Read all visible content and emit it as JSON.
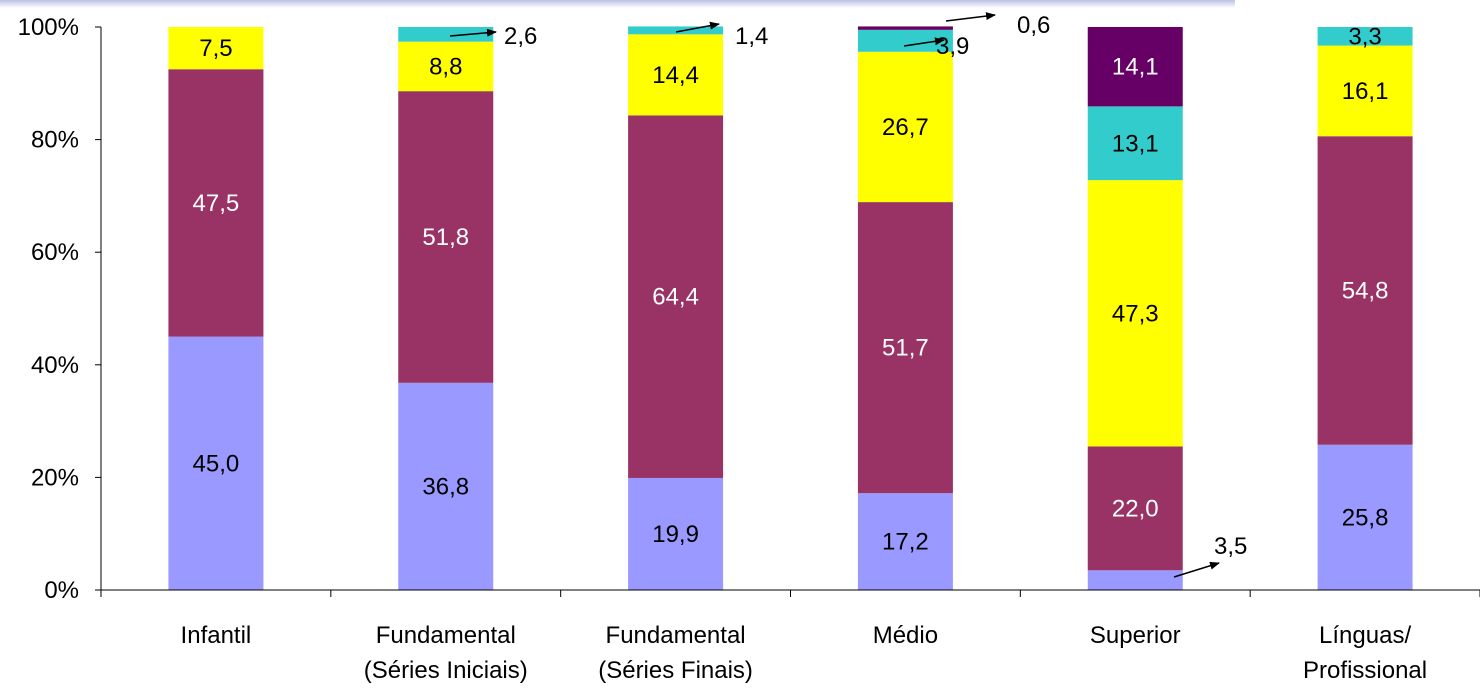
{
  "chart_data": {
    "type": "bar",
    "stacked": true,
    "percent_stacked": true,
    "categories": [
      [
        "Infantil"
      ],
      [
        "Fundamental",
        "(Séries Iniciais)"
      ],
      [
        "Fundamental",
        "(Séries Finais)"
      ],
      [
        "Médio"
      ],
      [
        "Superior"
      ],
      [
        "Línguas/",
        "Profissional"
      ]
    ],
    "series": [
      {
        "color": "#9999ff",
        "values": [
          45.0,
          36.8,
          19.9,
          17.2,
          3.5,
          25.8
        ],
        "labels": [
          "45,0",
          "36,8",
          "19,9",
          "17,2",
          "3,5",
          "25,8"
        ]
      },
      {
        "color": "#993366",
        "values": [
          47.5,
          51.8,
          64.4,
          51.7,
          22.0,
          54.8
        ],
        "labels": [
          "47,5",
          "51,8",
          "64,4",
          "51,7",
          "22,0",
          "54,8"
        ]
      },
      {
        "color": "#ffff00",
        "values": [
          7.5,
          8.8,
          14.4,
          26.7,
          47.3,
          16.1
        ],
        "labels": [
          "7,5",
          "8,8",
          "14,4",
          "26,7",
          "47,3",
          "16,1"
        ]
      },
      {
        "color": "#33cccc",
        "values": [
          0,
          2.6,
          1.4,
          3.9,
          13.1,
          3.3
        ],
        "labels": [
          "",
          "2,6",
          "1,4",
          "3,9",
          "13,1",
          "3,3"
        ]
      },
      {
        "color": "#660066",
        "values": [
          0,
          0,
          0,
          0.6,
          14.1,
          0
        ],
        "labels": [
          "",
          "",
          "",
          "0,6",
          "14,1",
          ""
        ]
      }
    ],
    "ylim": [
      0,
      100
    ],
    "yticks": [
      "0%",
      "20%",
      "40%",
      "60%",
      "80%",
      "100%"
    ],
    "xlabel": "",
    "ylabel": "",
    "title": "",
    "grid": false,
    "legend": "none"
  }
}
